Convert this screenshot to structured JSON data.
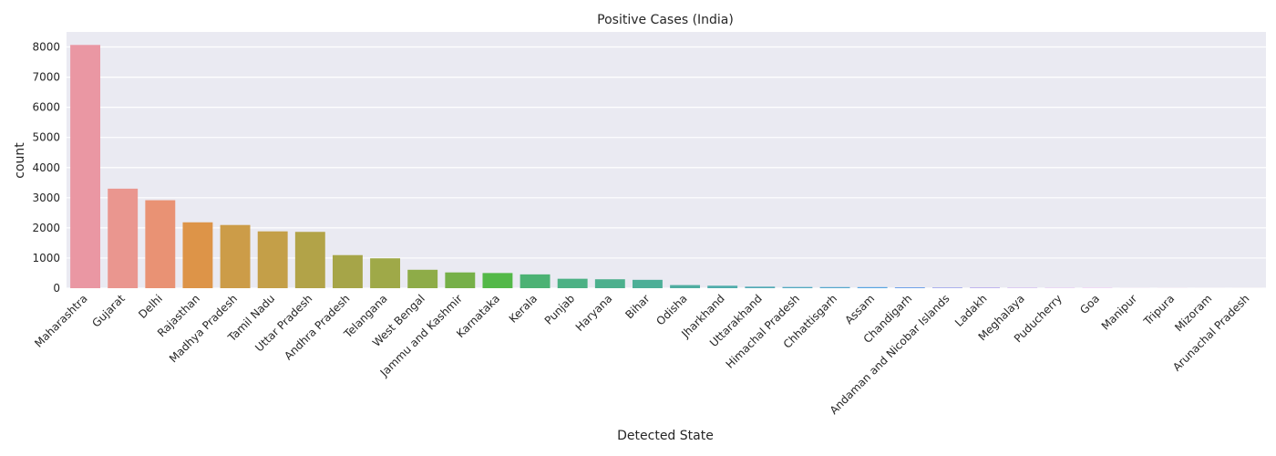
{
  "chart_data": {
    "type": "bar",
    "title": "Positive Cases (India)",
    "xlabel": "Detected State",
    "ylabel": "count",
    "ylim": [
      0,
      8500
    ],
    "yticks": [
      0,
      1000,
      2000,
      3000,
      4000,
      5000,
      6000,
      7000,
      8000
    ],
    "grid": true,
    "categories": [
      "Maharashtra",
      "Gujarat",
      "Delhi",
      "Rajasthan",
      "Madhya Pradesh",
      "Tamil Nadu",
      "Uttar Pradesh",
      "Andhra Pradesh",
      "Telangana",
      "West Bengal",
      "Jammu and Kashmir",
      "Karnataka",
      "Kerala",
      "Punjab",
      "Haryana",
      "Bihar",
      "Odisha",
      "Jharkhand",
      "Uttarakhand",
      "Himachal Pradesh",
      "Chhattisgarh",
      "Assam",
      "Chandigarh",
      "Andaman and Nicobar Islands",
      "Ladakh",
      "Meghalaya",
      "Puducherry",
      "Goa",
      "Manipur",
      "Tripura",
      "Mizoram",
      "Arunachal Pradesh"
    ],
    "values": [
      8068,
      3301,
      2918,
      2185,
      2096,
      1885,
      1868,
      1097,
      991,
      611,
      523,
      503,
      458,
      313,
      296,
      277,
      103,
      82,
      51,
      40,
      37,
      36,
      30,
      22,
      20,
      12,
      8,
      7,
      2,
      2,
      1,
      1
    ],
    "colors": [
      "#ea97a3",
      "#ea968f",
      "#e99274",
      "#dd9448",
      "#cc9c48",
      "#c49f48",
      "#b2a348",
      "#a6a548",
      "#9fa948",
      "#8eac48",
      "#76b048",
      "#53b848",
      "#4cb274",
      "#4cb184",
      "#4cb08d",
      "#4daf97",
      "#4fada1",
      "#50acab",
      "#52aab6",
      "#53a9c1",
      "#55a7cd",
      "#57a4e1",
      "#6ea0e9",
      "#939aea",
      "#a896ea",
      "#bb92ea",
      "#cd8ce9",
      "#df85e9",
      "#e78bd5",
      "#e890c0",
      "#e994b0",
      "#ea97a3"
    ]
  }
}
